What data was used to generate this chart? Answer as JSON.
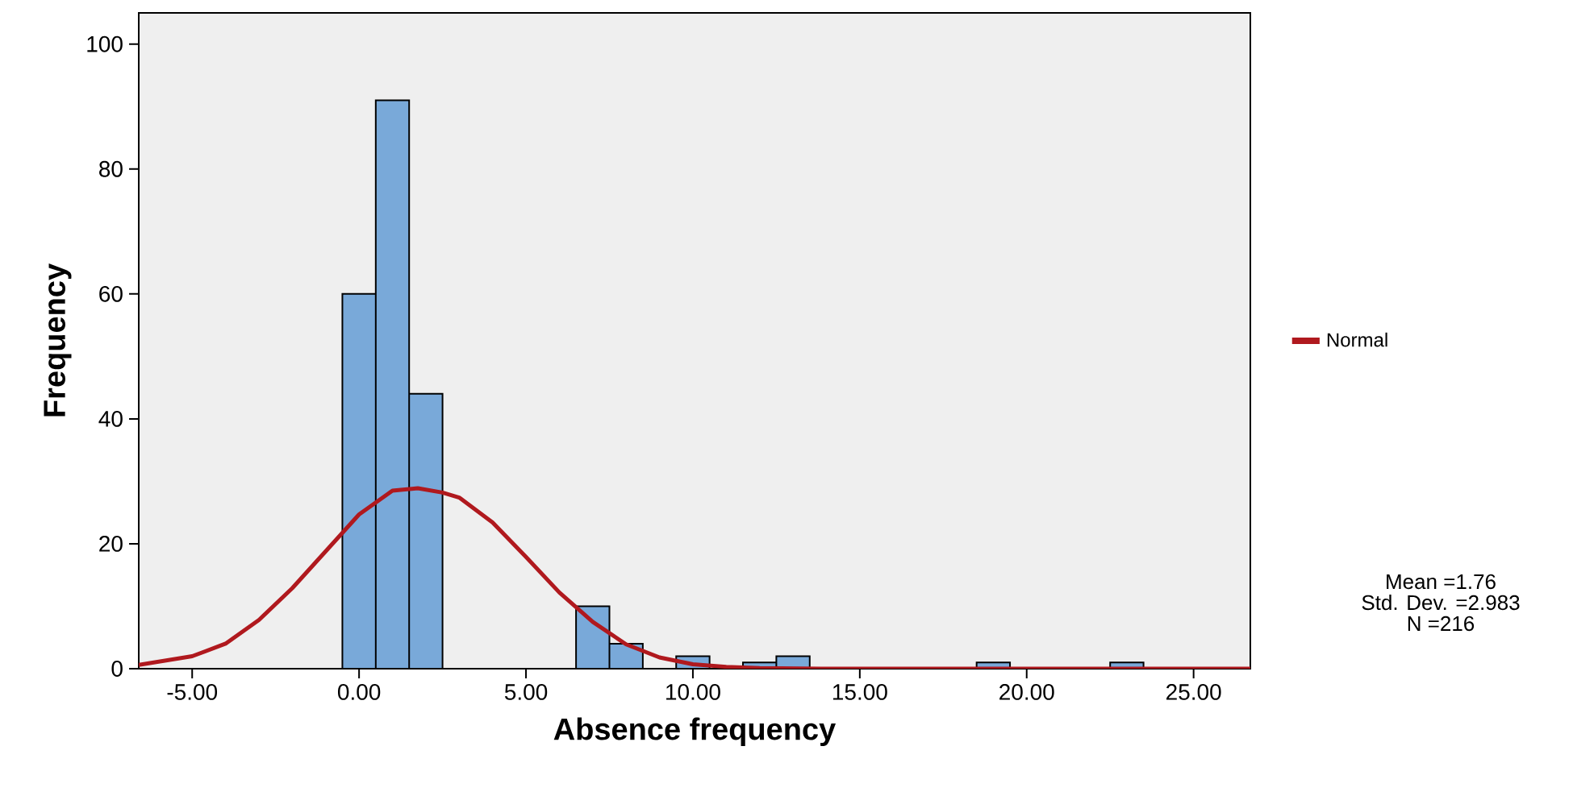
{
  "chart_data": {
    "type": "histogram",
    "xlabel": "Absence frequency",
    "ylabel": "Frequency",
    "bins": [
      -0.5,
      0.5,
      1.5,
      2.5,
      3.5,
      4.5,
      5.5,
      6.5,
      7.5,
      8.5,
      9.5,
      10.5,
      11.5,
      12.5,
      13.5,
      14.5,
      15.5,
      16.5,
      17.5,
      18.5,
      19.5,
      20.5,
      21.5,
      22.5,
      23.5
    ],
    "values": [
      60,
      91,
      44,
      0,
      0,
      0,
      0,
      10,
      4,
      0,
      2,
      0,
      1,
      2,
      0,
      0,
      0,
      0,
      0,
      1,
      0,
      0,
      0,
      1
    ],
    "color": "#79a9d9",
    "series": [
      {
        "type": "line",
        "name": "Normal",
        "color": "#b0191e",
        "x": [
          -6.6,
          -5,
          -4,
          -3,
          -2,
          -1,
          0,
          1,
          1.76,
          2.5,
          3,
          4,
          5,
          6,
          7,
          8,
          9,
          10,
          11,
          12,
          14,
          26.7
        ],
        "values": [
          0.6,
          2,
          4,
          7.8,
          12.9,
          18.8,
          24.7,
          28.5,
          28.9,
          28.2,
          27.4,
          23.4,
          17.9,
          12.2,
          7.5,
          3.9,
          1.8,
          0.7,
          0.3,
          0.1,
          0,
          0
        ]
      }
    ],
    "xlim": [
      -6.6,
      26.7
    ],
    "ylim": [
      0,
      105
    ],
    "xticks": [
      {
        "value": -5,
        "label": "-5.00"
      },
      {
        "value": 0,
        "label": "0.00"
      },
      {
        "value": 5,
        "label": "5.00"
      },
      {
        "value": 10,
        "label": "10.00"
      },
      {
        "value": 15,
        "label": "15.00"
      },
      {
        "value": 20,
        "label": "20.00"
      },
      {
        "value": 25,
        "label": "25.00"
      }
    ],
    "yticks": [
      0,
      20,
      40,
      60,
      80,
      100
    ],
    "legend": "right",
    "grid": false,
    "annotations": [
      "Mean =1.76",
      "Std. Dev. =2.983",
      "N =216"
    ]
  }
}
